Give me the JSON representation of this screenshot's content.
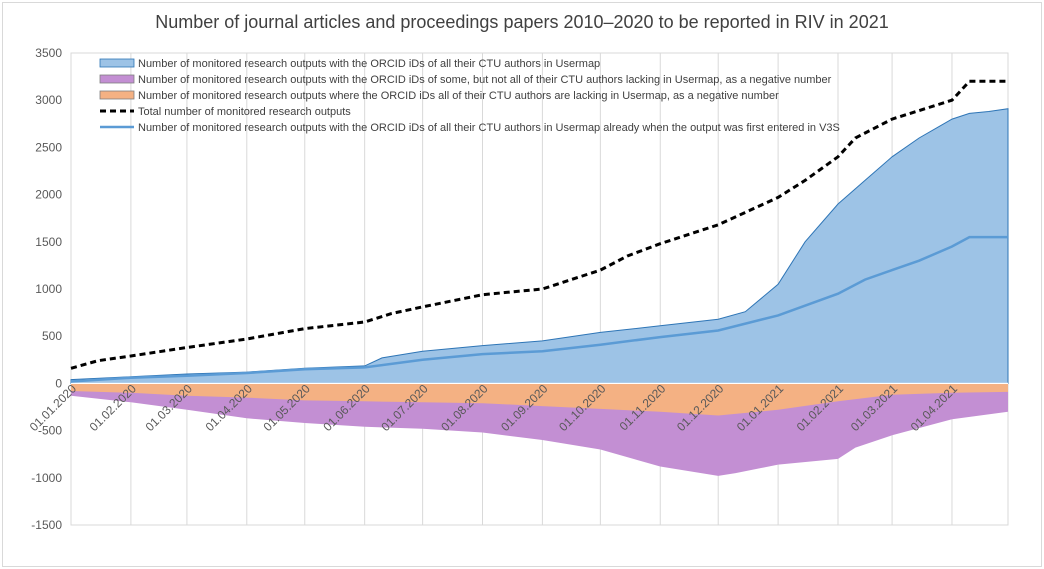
{
  "chart_data": {
    "type": "area",
    "title": "Number of journal articles and proceedings papers 2010–2020 to be reported in RIV in 2021",
    "xlabel": "",
    "ylabel": "",
    "ylim": [
      -1500,
      3500
    ],
    "yticks": [
      3500,
      3000,
      2500,
      2000,
      1500,
      1000,
      500,
      0,
      -500,
      -1000,
      -1500
    ],
    "xlim": [
      "2020-01-01",
      "2021-04-30"
    ],
    "xticks": [
      "01.01.2020",
      "01.02.2020",
      "01.03.2020",
      "01.04.2020",
      "01.05.2020",
      "01.06.2020",
      "01.07.2020",
      "01.08.2020",
      "01.09.2020",
      "01.10.2020",
      "01.11.2020",
      "01.12.2020",
      "01.01.2021",
      "01.02.2021",
      "01.03.2021",
      "01.04.2021"
    ],
    "grid": "vertical",
    "legend_position": "top",
    "series": [
      {
        "name": "Number of monitored research outputs with the ORCID iDs of all their CTU authors in Usermap",
        "kind": "area",
        "color": "#9dc3e6",
        "edge": "#2e75b6",
        "points": [
          [
            "2020-01-01",
            40
          ],
          [
            "2020-02-01",
            70
          ],
          [
            "2020-03-01",
            100
          ],
          [
            "2020-04-01",
            120
          ],
          [
            "2020-05-01",
            160
          ],
          [
            "2020-06-01",
            185
          ],
          [
            "2020-06-10",
            270
          ],
          [
            "2020-07-01",
            340
          ],
          [
            "2020-08-01",
            400
          ],
          [
            "2020-09-01",
            450
          ],
          [
            "2020-10-01",
            540
          ],
          [
            "2020-11-01",
            610
          ],
          [
            "2020-12-01",
            680
          ],
          [
            "2020-12-15",
            760
          ],
          [
            "2021-01-01",
            1050
          ],
          [
            "2021-01-15",
            1500
          ],
          [
            "2021-02-01",
            1900
          ],
          [
            "2021-02-15",
            2150
          ],
          [
            "2021-03-01",
            2400
          ],
          [
            "2021-03-15",
            2600
          ],
          [
            "2021-04-01",
            2800
          ],
          [
            "2021-04-10",
            2860
          ],
          [
            "2021-04-20",
            2880
          ],
          [
            "2021-04-30",
            2910
          ]
        ]
      },
      {
        "name": "Number of monitored research outputs with the ORCID iDs of some, but not all of their CTU authors lacking in Usermap, as a negative number",
        "kind": "area",
        "color": "#c38fd3",
        "points": [
          [
            "2020-01-01",
            -130
          ],
          [
            "2020-02-01",
            -200
          ],
          [
            "2020-03-01",
            -280
          ],
          [
            "2020-04-01",
            -370
          ],
          [
            "2020-05-01",
            -420
          ],
          [
            "2020-06-01",
            -460
          ],
          [
            "2020-07-01",
            -480
          ],
          [
            "2020-08-01",
            -520
          ],
          [
            "2020-09-01",
            -600
          ],
          [
            "2020-10-01",
            -700
          ],
          [
            "2020-11-01",
            -880
          ],
          [
            "2020-12-01",
            -980
          ],
          [
            "2020-12-10",
            -950
          ],
          [
            "2021-01-01",
            -860
          ],
          [
            "2021-02-01",
            -800
          ],
          [
            "2021-02-10",
            -680
          ],
          [
            "2021-03-01",
            -550
          ],
          [
            "2021-04-01",
            -380
          ],
          [
            "2021-04-30",
            -300
          ]
        ]
      },
      {
        "name": "Number of monitored research outputs where the ORCID iDs all of their CTU authors are lacking in Usermap, as a negative number",
        "kind": "area",
        "color": "#f4b183",
        "points": [
          [
            "2020-01-01",
            -80
          ],
          [
            "2020-02-01",
            -100
          ],
          [
            "2020-03-01",
            -130
          ],
          [
            "2020-04-01",
            -150
          ],
          [
            "2020-05-01",
            -180
          ],
          [
            "2020-06-01",
            -190
          ],
          [
            "2020-07-01",
            -200
          ],
          [
            "2020-08-01",
            -210
          ],
          [
            "2020-09-01",
            -240
          ],
          [
            "2020-10-01",
            -270
          ],
          [
            "2020-11-01",
            -300
          ],
          [
            "2020-12-01",
            -340
          ],
          [
            "2021-01-01",
            -280
          ],
          [
            "2021-02-01",
            -190
          ],
          [
            "2021-03-01",
            -120
          ],
          [
            "2021-04-01",
            -100
          ],
          [
            "2021-04-30",
            -90
          ]
        ]
      },
      {
        "name": "Total number of monitored research outputs",
        "kind": "dashed-line",
        "color": "#000000",
        "points": [
          [
            "2020-01-01",
            160
          ],
          [
            "2020-01-15",
            240
          ],
          [
            "2020-02-01",
            290
          ],
          [
            "2020-03-01",
            380
          ],
          [
            "2020-04-01",
            470
          ],
          [
            "2020-05-01",
            580
          ],
          [
            "2020-06-01",
            650
          ],
          [
            "2020-06-15",
            740
          ],
          [
            "2020-07-01",
            810
          ],
          [
            "2020-08-01",
            940
          ],
          [
            "2020-09-01",
            1000
          ],
          [
            "2020-10-01",
            1200
          ],
          [
            "2020-10-15",
            1350
          ],
          [
            "2020-11-01",
            1480
          ],
          [
            "2020-12-01",
            1680
          ],
          [
            "2021-01-01",
            1970
          ],
          [
            "2021-01-15",
            2150
          ],
          [
            "2021-02-01",
            2400
          ],
          [
            "2021-02-10",
            2600
          ],
          [
            "2021-03-01",
            2800
          ],
          [
            "2021-04-01",
            3000
          ],
          [
            "2021-04-10",
            3200
          ],
          [
            "2021-04-30",
            3200
          ]
        ]
      },
      {
        "name": "Number of monitored research outputs with the ORCID iDs of all their CTU authors in Usermap already when the output was first entered in V3S",
        "kind": "line",
        "color": "#5b9bd5",
        "points": [
          [
            "2020-01-01",
            20
          ],
          [
            "2020-02-01",
            60
          ],
          [
            "2020-03-01",
            80
          ],
          [
            "2020-04-01",
            110
          ],
          [
            "2020-05-01",
            150
          ],
          [
            "2020-06-01",
            170
          ],
          [
            "2020-07-01",
            250
          ],
          [
            "2020-08-01",
            310
          ],
          [
            "2020-09-01",
            340
          ],
          [
            "2020-10-01",
            410
          ],
          [
            "2020-11-01",
            490
          ],
          [
            "2020-12-01",
            560
          ],
          [
            "2021-01-01",
            720
          ],
          [
            "2021-02-01",
            950
          ],
          [
            "2021-02-15",
            1100
          ],
          [
            "2021-03-01",
            1200
          ],
          [
            "2021-03-15",
            1300
          ],
          [
            "2021-04-01",
            1450
          ],
          [
            "2021-04-10",
            1550
          ],
          [
            "2021-04-30",
            1550
          ]
        ]
      }
    ]
  }
}
